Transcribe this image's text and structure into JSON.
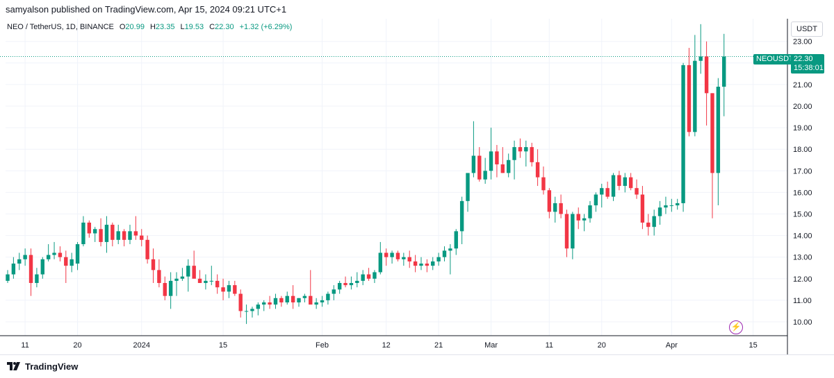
{
  "header": {
    "published": "samyalson published on TradingView.com, Apr 15, 2024 09:21 UTC+1"
  },
  "legend": {
    "symbol": "NEO / TetherUS, 1D, BINANCE",
    "open_label": "O",
    "open": "20.99",
    "high_label": "H",
    "high": "23.35",
    "low_label": "L",
    "low": "19.53",
    "close_label": "C",
    "close": "22.30",
    "change": "+1.32 (+6.29%)"
  },
  "price_scale": {
    "currency": "USDT",
    "ticker_tag": "NEOUSDT",
    "last_price": "22.30",
    "countdown": "15:38:01"
  },
  "footer": {
    "brand": "TradingView"
  },
  "colors": {
    "up": "#089981",
    "down": "#f23645",
    "grid": "#f0f3fa",
    "axis": "#131722",
    "accent": "#9c27b0"
  },
  "chart_data": {
    "type": "candlestick",
    "ylim": [
      9.3,
      23.9
    ],
    "yticks": [
      10,
      11,
      12,
      13,
      14,
      15,
      16,
      17,
      18,
      19,
      20,
      21,
      22,
      23
    ],
    "ytick_labels": [
      "10.00",
      "11.00",
      "12.00",
      "13.00",
      "14.00",
      "15.00",
      "16.00",
      "17.00",
      "18.00",
      "19.00",
      "20.00",
      "21.00",
      "22.00",
      "23.00"
    ],
    "xticks": [
      {
        "label": "11",
        "index": 3
      },
      {
        "label": "20",
        "index": 12
      },
      {
        "label": "2024",
        "index": 23
      },
      {
        "label": "15",
        "index": 37
      },
      {
        "label": "Feb",
        "index": 54
      },
      {
        "label": "12",
        "index": 65
      },
      {
        "label": "21",
        "index": 74
      },
      {
        "label": "Mar",
        "index": 83
      },
      {
        "label": "11",
        "index": 93
      },
      {
        "label": "20",
        "index": 102
      },
      {
        "label": "Apr",
        "index": 114
      },
      {
        "label": "15",
        "index": 128
      }
    ],
    "last_price": 22.3,
    "ohlc": [
      [
        11.9,
        12.4,
        11.8,
        12.2
      ],
      [
        12.2,
        13.0,
        12.0,
        12.7
      ],
      [
        12.7,
        13.2,
        12.4,
        12.9
      ],
      [
        12.9,
        13.4,
        12.6,
        13.1
      ],
      [
        13.1,
        13.4,
        11.2,
        11.8
      ],
      [
        11.8,
        12.5,
        11.6,
        12.2
      ],
      [
        12.2,
        13.0,
        12.0,
        12.9
      ],
      [
        12.9,
        13.6,
        12.8,
        13.1
      ],
      [
        13.1,
        13.7,
        12.9,
        13.2
      ],
      [
        13.2,
        13.5,
        12.8,
        13.0
      ],
      [
        13.0,
        13.3,
        11.8,
        12.6
      ],
      [
        12.6,
        13.2,
        12.3,
        12.9
      ],
      [
        12.7,
        13.7,
        12.4,
        13.6
      ],
      [
        13.6,
        14.9,
        13.5,
        14.6
      ],
      [
        14.6,
        14.7,
        13.9,
        14.1
      ],
      [
        14.1,
        14.4,
        13.7,
        14.3
      ],
      [
        14.3,
        14.8,
        13.5,
        13.7
      ],
      [
        13.7,
        14.9,
        13.2,
        14.5
      ],
      [
        14.5,
        14.6,
        13.5,
        13.8
      ],
      [
        13.8,
        14.5,
        13.6,
        14.2
      ],
      [
        14.2,
        14.3,
        13.5,
        13.8
      ],
      [
        13.8,
        14.5,
        13.6,
        14.2
      ],
      [
        14.2,
        14.9,
        13.8,
        14.0
      ],
      [
        14.0,
        14.3,
        13.5,
        13.8
      ],
      [
        13.8,
        14.0,
        12.7,
        12.9
      ],
      [
        12.9,
        13.4,
        11.8,
        12.4
      ],
      [
        12.4,
        12.9,
        11.6,
        11.8
      ],
      [
        11.8,
        12.1,
        11.0,
        11.2
      ],
      [
        11.2,
        12.3,
        10.6,
        11.9
      ],
      [
        11.9,
        12.3,
        11.2,
        12.0
      ],
      [
        12.0,
        12.5,
        11.9,
        12.1
      ],
      [
        12.1,
        12.9,
        11.4,
        12.6
      ],
      [
        12.6,
        13.3,
        12.1,
        12.0
      ],
      [
        12.0,
        12.4,
        11.8,
        11.8
      ],
      [
        11.8,
        12.2,
        11.5,
        11.9
      ],
      [
        11.9,
        12.6,
        11.7,
        11.9
      ],
      [
        11.9,
        12.2,
        11.3,
        11.6
      ],
      [
        11.6,
        12.0,
        11.0,
        11.4
      ],
      [
        11.4,
        11.9,
        11.1,
        11.7
      ],
      [
        11.7,
        11.9,
        11.2,
        11.3
      ],
      [
        11.3,
        11.5,
        10.2,
        10.5
      ],
      [
        10.5,
        10.8,
        9.9,
        10.5
      ],
      [
        10.5,
        10.7,
        10.2,
        10.6
      ],
      [
        10.6,
        10.9,
        10.3,
        10.8
      ],
      [
        10.8,
        11.0,
        10.5,
        10.9
      ],
      [
        10.9,
        11.2,
        10.6,
        10.8
      ],
      [
        10.8,
        11.3,
        10.6,
        11.1
      ],
      [
        11.1,
        11.2,
        10.7,
        10.9
      ],
      [
        10.9,
        11.4,
        10.8,
        11.2
      ],
      [
        11.2,
        11.7,
        10.6,
        10.9
      ],
      [
        10.9,
        11.1,
        10.7,
        11.1
      ],
      [
        11.1,
        11.3,
        10.9,
        11.2
      ],
      [
        11.2,
        12.4,
        10.9,
        10.8
      ],
      [
        10.8,
        11.1,
        10.6,
        10.9
      ],
      [
        10.9,
        11.2,
        10.7,
        11.0
      ],
      [
        11.0,
        11.4,
        10.8,
        11.3
      ],
      [
        11.3,
        11.7,
        11.0,
        11.5
      ],
      [
        11.5,
        11.9,
        11.3,
        11.8
      ],
      [
        11.8,
        12.1,
        11.6,
        11.7
      ],
      [
        11.7,
        12.1,
        11.5,
        11.8
      ],
      [
        11.8,
        12.3,
        11.6,
        11.9
      ],
      [
        11.9,
        12.4,
        11.7,
        12.2
      ],
      [
        12.2,
        12.5,
        11.9,
        12.0
      ],
      [
        12.0,
        12.4,
        11.8,
        12.3
      ],
      [
        12.3,
        13.7,
        12.2,
        13.2
      ],
      [
        13.2,
        13.4,
        12.6,
        13.0
      ],
      [
        13.0,
        13.3,
        12.7,
        13.2
      ],
      [
        13.2,
        13.3,
        12.8,
        12.9
      ],
      [
        12.9,
        13.2,
        12.6,
        13.0
      ],
      [
        13.0,
        13.3,
        12.5,
        12.8
      ],
      [
        12.8,
        13.1,
        12.3,
        12.6
      ],
      [
        12.6,
        13.0,
        12.4,
        12.7
      ],
      [
        12.7,
        12.9,
        12.3,
        12.6
      ],
      [
        12.6,
        13.0,
        12.4,
        12.8
      ],
      [
        12.8,
        13.2,
        12.6,
        13.0
      ],
      [
        13.0,
        13.5,
        12.8,
        13.3
      ],
      [
        13.3,
        13.6,
        12.2,
        13.4
      ],
      [
        13.4,
        14.3,
        13.1,
        14.2
      ],
      [
        14.2,
        15.8,
        13.6,
        15.6
      ],
      [
        15.6,
        16.8,
        15.1,
        16.9
      ],
      [
        16.9,
        19.3,
        16.7,
        17.7
      ],
      [
        17.7,
        18.1,
        16.5,
        16.6
      ],
      [
        16.6,
        17.6,
        16.4,
        17.0
      ],
      [
        17.0,
        19.0,
        16.6,
        17.9
      ],
      [
        17.9,
        18.2,
        16.7,
        17.3
      ],
      [
        17.3,
        18.1,
        16.9,
        16.9
      ],
      [
        16.9,
        17.8,
        16.7,
        17.5
      ],
      [
        17.5,
        18.4,
        16.6,
        18.1
      ],
      [
        18.1,
        18.5,
        17.6,
        17.9
      ],
      [
        17.9,
        18.4,
        17.2,
        18.1
      ],
      [
        18.1,
        18.3,
        17.2,
        17.4
      ],
      [
        17.4,
        18.0,
        16.3,
        16.7
      ],
      [
        16.7,
        17.2,
        15.9,
        16.1
      ],
      [
        16.1,
        16.2,
        14.8,
        15.1
      ],
      [
        15.1,
        15.8,
        14.6,
        15.5
      ],
      [
        15.5,
        15.9,
        14.8,
        15.0
      ],
      [
        15.0,
        15.2,
        13.0,
        13.4
      ],
      [
        13.4,
        15.1,
        12.9,
        15.0
      ],
      [
        15.0,
        15.3,
        14.3,
        14.7
      ],
      [
        14.7,
        15.0,
        14.2,
        14.8
      ],
      [
        14.8,
        15.6,
        14.6,
        15.4
      ],
      [
        15.4,
        16.0,
        15.1,
        15.9
      ],
      [
        15.9,
        16.4,
        15.3,
        16.2
      ],
      [
        16.2,
        16.5,
        15.7,
        15.8
      ],
      [
        15.8,
        16.9,
        15.6,
        16.8
      ],
      [
        16.8,
        17.0,
        16.1,
        16.3
      ],
      [
        16.3,
        16.9,
        16.0,
        16.7
      ],
      [
        16.7,
        16.9,
        16.1,
        16.2
      ],
      [
        16.2,
        16.6,
        15.7,
        15.9
      ],
      [
        15.9,
        16.3,
        14.3,
        14.6
      ],
      [
        14.6,
        15.0,
        14.0,
        14.4
      ],
      [
        14.4,
        15.2,
        14.0,
        14.9
      ],
      [
        14.9,
        15.6,
        14.5,
        15.3
      ],
      [
        15.3,
        15.8,
        15.0,
        15.4
      ],
      [
        15.4,
        15.7,
        15.1,
        15.4
      ],
      [
        15.4,
        15.7,
        15.2,
        15.5
      ],
      [
        15.5,
        22.0,
        15.1,
        21.9
      ],
      [
        21.9,
        22.7,
        18.6,
        18.8
      ],
      [
        18.8,
        23.3,
        18.6,
        22.1
      ],
      [
        22.1,
        23.8,
        21.5,
        22.3
      ],
      [
        22.3,
        23.0,
        19.1,
        20.6
      ],
      [
        20.6,
        20.6,
        14.8,
        16.9
      ],
      [
        16.9,
        21.3,
        15.4,
        20.9
      ],
      [
        20.9,
        23.35,
        19.53,
        22.3
      ]
    ]
  }
}
